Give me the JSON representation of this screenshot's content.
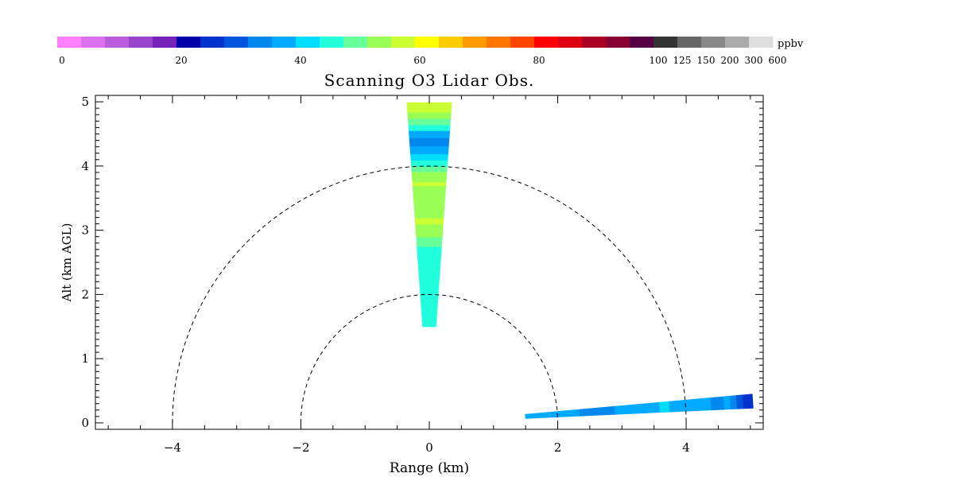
{
  "chart_data": {
    "type": "other",
    "title": "Scanning O3 Lidar Obs.",
    "xlabel": "Range (km)",
    "ylabel": "Alt (km AGL)",
    "xlim": [
      -5.2,
      5.2
    ],
    "ylim": [
      -0.1,
      5.1
    ],
    "xticks": [
      -4,
      -2,
      0,
      2,
      4
    ],
    "yticks": [
      0,
      1,
      2,
      3,
      4,
      5
    ],
    "grid": false,
    "reference_circles_km": [
      2,
      4
    ],
    "colorbar": {
      "unit": "ppbv",
      "tick_labels": [
        {
          "label": "0",
          "index": 0
        },
        {
          "label": "20",
          "index": 5
        },
        {
          "label": "40",
          "index": 10
        },
        {
          "label": "60",
          "index": 15
        },
        {
          "label": "80",
          "index": 20
        },
        {
          "label": "100",
          "index": 25
        },
        {
          "label": "125",
          "index": 26
        },
        {
          "label": "150",
          "index": 27
        },
        {
          "label": "200",
          "index": 28
        },
        {
          "label": "300",
          "index": 29
        },
        {
          "label": "600",
          "index": 30
        }
      ],
      "colors": [
        "#ff80ff",
        "#dd70ee",
        "#bb5cdd",
        "#9944cc",
        "#7722bb",
        "#0000aa",
        "#0033cc",
        "#0055dd",
        "#0088ee",
        "#00aaff",
        "#00ddff",
        "#22ffdd",
        "#66ff99",
        "#99ff55",
        "#ccff33",
        "#ffff00",
        "#ffcc00",
        "#ff9900",
        "#ff7700",
        "#ff4400",
        "#ff0000",
        "#dd0011",
        "#aa0022",
        "#880033",
        "#550044",
        "#333333",
        "#666666",
        "#888888",
        "#aaaaaa",
        "#dddddd"
      ]
    },
    "scans": [
      {
        "name": "vertical",
        "elevation_deg": [
          86,
          94
        ],
        "bins": [
          {
            "r0": 1.5,
            "r1": 1.8,
            "ppbv": 44
          },
          {
            "r0": 1.8,
            "r1": 2.75,
            "ppbv": 45
          },
          {
            "r0": 2.75,
            "r1": 2.9,
            "ppbv": 50
          },
          {
            "r0": 2.9,
            "r1": 3.1,
            "ppbv": 54
          },
          {
            "r0": 3.1,
            "r1": 3.2,
            "ppbv": 56
          },
          {
            "r0": 3.2,
            "r1": 3.7,
            "ppbv": 53
          },
          {
            "r0": 3.7,
            "r1": 3.76,
            "ppbv": 58
          },
          {
            "r0": 3.76,
            "r1": 3.92,
            "ppbv": 53
          },
          {
            "r0": 3.92,
            "r1": 4.0,
            "ppbv": 50
          },
          {
            "r0": 4.0,
            "r1": 4.1,
            "ppbv": 44
          },
          {
            "r0": 4.1,
            "r1": 4.2,
            "ppbv": 40
          },
          {
            "r0": 4.2,
            "r1": 4.32,
            "ppbv": 36
          },
          {
            "r0": 4.32,
            "r1": 4.45,
            "ppbv": 32
          },
          {
            "r0": 4.45,
            "r1": 4.56,
            "ppbv": 38
          },
          {
            "r0": 4.56,
            "r1": 4.65,
            "ppbv": 44
          },
          {
            "r0": 4.65,
            "r1": 4.75,
            "ppbv": 50
          },
          {
            "r0": 4.75,
            "r1": 4.85,
            "ppbv": 53
          },
          {
            "r0": 4.85,
            "r1": 5.0,
            "ppbv": 56
          }
        ]
      },
      {
        "name": "low-elevation",
        "elevation_deg": [
          2.6,
          5.1
        ],
        "bins": [
          {
            "r0": 1.5,
            "r1": 2.0,
            "ppbv": 38
          },
          {
            "r0": 2.0,
            "r1": 2.35,
            "ppbv": 36
          },
          {
            "r0": 2.35,
            "r1": 2.9,
            "ppbv": 33
          },
          {
            "r0": 2.9,
            "r1": 3.6,
            "ppbv": 37
          },
          {
            "r0": 3.6,
            "r1": 3.75,
            "ppbv": 41
          },
          {
            "r0": 3.75,
            "r1": 4.4,
            "ppbv": 37
          },
          {
            "r0": 4.4,
            "r1": 4.6,
            "ppbv": 33
          },
          {
            "r0": 4.6,
            "r1": 4.7,
            "ppbv": 37
          },
          {
            "r0": 4.7,
            "r1": 4.8,
            "ppbv": 33
          },
          {
            "r0": 4.8,
            "r1": 4.9,
            "ppbv": 29
          },
          {
            "r0": 4.9,
            "r1": 5.05,
            "ppbv": 26
          }
        ]
      }
    ]
  }
}
